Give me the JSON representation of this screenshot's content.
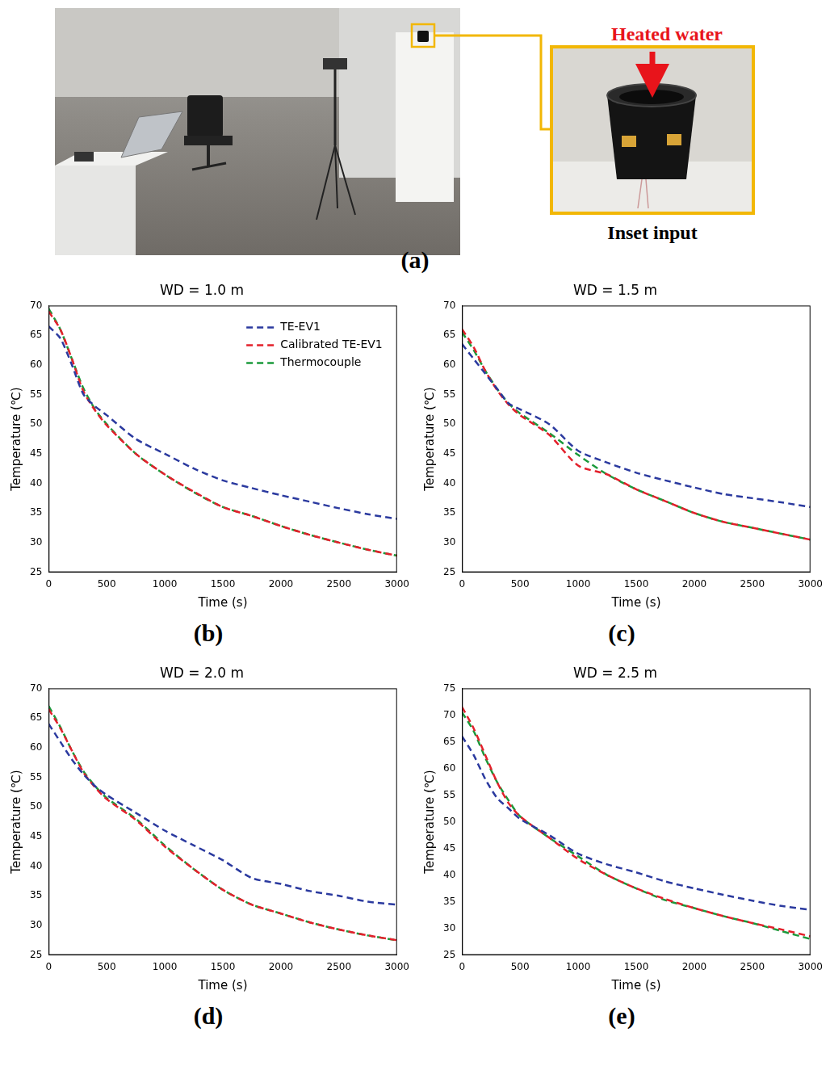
{
  "panel_a": {
    "label": "(a)",
    "arrow_text": "Heated water",
    "inset_caption": "Inset input"
  },
  "chart_data": [
    {
      "panel_label": "(b)",
      "type": "line",
      "title": "WD = 1.0 m",
      "x_label": "Time (s)",
      "y_label": "Temperature (℃)",
      "x": [
        0,
        100,
        200,
        300,
        400,
        500,
        750,
        1000,
        1250,
        1500,
        1750,
        2000,
        2250,
        2500,
        2750,
        3000
      ],
      "series": [
        {
          "name": "TE-EV1",
          "color": "#2b3a9f",
          "values": [
            66.5,
            64.5,
            60,
            55,
            53,
            51.5,
            47.5,
            45,
            42.5,
            40.5,
            39.2,
            38,
            36.9,
            35.8,
            34.8,
            34
          ]
        },
        {
          "name": "Calibrated TE-EV1",
          "color": "#e3202b",
          "values": [
            69,
            66,
            61,
            55.5,
            52.3,
            49.8,
            45,
            41.5,
            38.6,
            36,
            34.5,
            32.8,
            31.3,
            30,
            28.8,
            27.8
          ]
        },
        {
          "name": "Thermocouple",
          "color": "#1b9a3b",
          "values": [
            69.5,
            66,
            61,
            56,
            52.5,
            50,
            45,
            41.5,
            38.5,
            36,
            34.5,
            32.8,
            31.3,
            30,
            28.8,
            27.8
          ]
        }
      ],
      "xlim": [
        0,
        3000
      ],
      "xticks": [
        0,
        500,
        1000,
        1500,
        2000,
        2500,
        3000
      ],
      "ylim": [
        25,
        70
      ],
      "yticks": [
        25,
        30,
        35,
        40,
        45,
        50,
        55,
        60,
        65,
        70
      ],
      "grid": false,
      "line_style": "dashed",
      "legend": "upper right"
    },
    {
      "panel_label": "(c)",
      "type": "line",
      "title": "WD = 1.5 m",
      "x_label": "Time (s)",
      "y_label": "Temperature (℃)",
      "x": [
        0,
        100,
        200,
        300,
        400,
        500,
        750,
        1000,
        1250,
        1500,
        1750,
        2000,
        2250,
        2500,
        2750,
        3000
      ],
      "series": [
        {
          "color": "#2b3a9f",
          "values": [
            63.5,
            61,
            58.5,
            56,
            53.5,
            52.5,
            50,
            45.5,
            43.5,
            41.8,
            40.5,
            39.3,
            38.2,
            37.5,
            36.8,
            36
          ]
        },
        {
          "color": "#e3202b",
          "values": [
            66,
            63,
            59,
            55.8,
            53.3,
            51.5,
            48.2,
            43,
            41.5,
            39,
            37,
            35,
            33.5,
            32.5,
            31.5,
            30.5
          ]
        },
        {
          "color": "#1b9a3b",
          "values": [
            65.5,
            62.5,
            59,
            56,
            53.5,
            51.8,
            48.5,
            44.8,
            41.5,
            39,
            37,
            35,
            33.5,
            32.5,
            31.5,
            30.5
          ]
        }
      ],
      "xlim": [
        0,
        3000
      ],
      "xticks": [
        0,
        500,
        1000,
        1500,
        2000,
        2500,
        3000
      ],
      "ylim": [
        25,
        70
      ],
      "yticks": [
        25,
        30,
        35,
        40,
        45,
        50,
        55,
        60,
        65,
        70
      ],
      "grid": false,
      "line_style": "dashed"
    },
    {
      "panel_label": "(d)",
      "type": "line",
      "title": "WD = 2.0 m",
      "x_label": "Time (s)",
      "y_label": "Temperature (℃)",
      "x": [
        0,
        100,
        200,
        300,
        400,
        500,
        750,
        1000,
        1250,
        1500,
        1750,
        2000,
        2250,
        2500,
        2750,
        3000
      ],
      "series": [
        {
          "color": "#2b3a9f",
          "values": [
            64,
            61,
            58,
            55.5,
            53.5,
            52,
            49,
            46,
            43.5,
            41,
            38,
            37,
            35.8,
            35,
            34,
            33.5
          ]
        },
        {
          "color": "#e3202b",
          "values": [
            66.5,
            63.3,
            59.5,
            55.8,
            53.3,
            51.3,
            47.8,
            43.3,
            39.5,
            36,
            33.5,
            32,
            30.5,
            29.3,
            28.3,
            27.5
          ]
        },
        {
          "color": "#1b9a3b",
          "values": [
            67,
            63.5,
            59.5,
            56,
            53.5,
            51.5,
            48,
            43.5,
            39.5,
            36,
            33.5,
            32,
            30.5,
            29.3,
            28.3,
            27.5
          ]
        }
      ],
      "xlim": [
        0,
        3000
      ],
      "xticks": [
        0,
        500,
        1000,
        1500,
        2000,
        2500,
        3000
      ],
      "ylim": [
        25,
        70
      ],
      "yticks": [
        25,
        30,
        35,
        40,
        45,
        50,
        55,
        60,
        65,
        70
      ],
      "grid": false,
      "line_style": "dashed"
    },
    {
      "panel_label": "(e)",
      "type": "line",
      "title": "WD = 2.5 m",
      "x_label": "Time (s)",
      "y_label": "Temperature (℃)",
      "x": [
        0,
        100,
        200,
        300,
        400,
        500,
        750,
        1000,
        1250,
        1500,
        1750,
        2000,
        2250,
        2500,
        2750,
        3000
      ],
      "series": [
        {
          "color": "#2b3a9f",
          "values": [
            66,
            62.5,
            58,
            54.5,
            52.5,
            50.5,
            47.5,
            44,
            42,
            40.5,
            38.8,
            37.5,
            36.3,
            35.2,
            34.2,
            33.5
          ]
        },
        {
          "color": "#e3202b",
          "values": [
            71.5,
            67.5,
            62.5,
            57.5,
            53.5,
            51,
            47,
            43,
            40,
            37.5,
            35.5,
            33.8,
            32.3,
            31,
            29.8,
            28.5
          ]
        },
        {
          "color": "#1b9a3b",
          "values": [
            70.5,
            67,
            62,
            57.5,
            54,
            51,
            47,
            43.5,
            40,
            37.5,
            35.3,
            33.8,
            32.3,
            31,
            29.5,
            28
          ]
        }
      ],
      "xlim": [
        0,
        3000
      ],
      "xticks": [
        0,
        500,
        1000,
        1500,
        2000,
        2500,
        3000
      ],
      "ylim": [
        25,
        75
      ],
      "yticks": [
        25,
        30,
        35,
        40,
        45,
        50,
        55,
        60,
        65,
        70,
        75
      ],
      "grid": false,
      "line_style": "dashed"
    }
  ]
}
